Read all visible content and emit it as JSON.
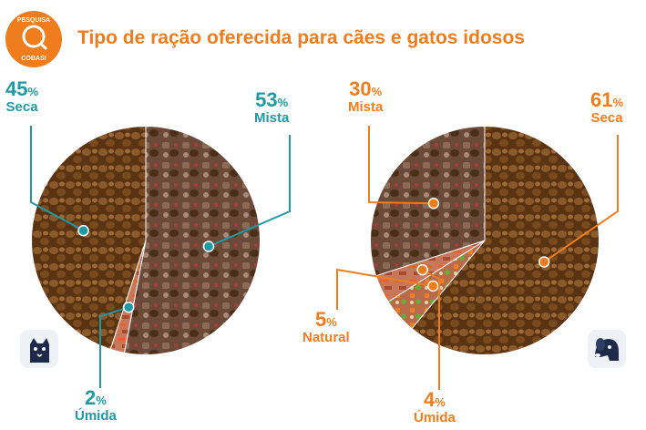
{
  "title": "Tipo de ração oferecida para cães e gatos idosos",
  "badge": {
    "line1": "PESQUISA",
    "line2": "COBASI"
  },
  "colors": {
    "teal": "#1f9aa3",
    "orange": "#f07d1d",
    "navy": "#1d2a4a"
  },
  "icons": {
    "cat": "cat-icon",
    "dog": "dog-icon"
  },
  "chart_data": [
    {
      "type": "pie",
      "subject": "cat-icon",
      "slices": [
        {
          "label": "Seca",
          "value": 45,
          "display": "45"
        },
        {
          "label": "Mista",
          "value": 53,
          "display": "53"
        },
        {
          "label": "Úmida",
          "value": 2,
          "display": "2"
        }
      ]
    },
    {
      "type": "pie",
      "subject": "dog-icon",
      "slices": [
        {
          "label": "Mista",
          "value": 30,
          "display": "30"
        },
        {
          "label": "Seca",
          "value": 61,
          "display": "61"
        },
        {
          "label": "Natural",
          "value": 5,
          "display": "5"
        },
        {
          "label": "Úmida",
          "value": 4,
          "display": "4"
        }
      ]
    }
  ],
  "pct_symbol": "%"
}
